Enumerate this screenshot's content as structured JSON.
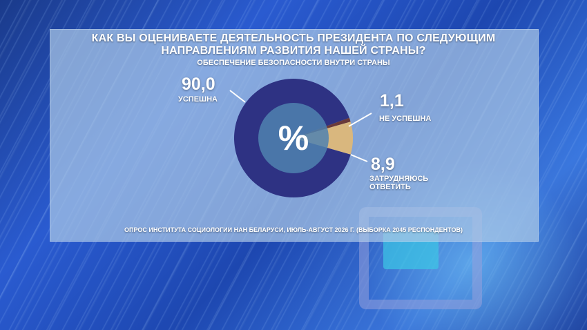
{
  "title_line1": "КАК ВЫ ОЦЕНИВАЕТЕ ДЕЯТЕЛЬНОСТЬ ПРЕЗИДЕНТА ПО СЛЕДУЮЩИМ",
  "title_line2": "НАПРАВЛЕНИЯМ РАЗВИТИЯ НАШЕЙ СТРАНЫ?",
  "subtitle": "ОБЕСПЕЧЕНИЕ БЕЗОПАСНОСТИ ВНУТРИ СТРАНЫ",
  "footer": "ОПРОС ИНСТИТУТА СОЦИОЛОГИИ НАН БЕЛАРУСИ, ИЮЛЬ-АВГУСТ 2026 Г. (ВЫБОРКА 2045 РЕСПОНДЕНТОВ)",
  "center_symbol": "%",
  "colors": {
    "success": "#2e3283",
    "not_success": "#6b3a3a",
    "undecided": "#d9b77e",
    "hole": "#4f82b0"
  },
  "chart_data": {
    "type": "pie",
    "donut": true,
    "slices": [
      {
        "label": "УСПЕШНА",
        "value": 90.0,
        "display": "90,0",
        "color": "#2e3283"
      },
      {
        "label": "НЕ УСПЕШНА",
        "value": 1.1,
        "display": "1,1",
        "color": "#6b3a3a"
      },
      {
        "label_lines": [
          "ЗАТРУДНЯЮСЬ",
          "ОТВЕТИТЬ"
        ],
        "value": 8.9,
        "display": "8,9",
        "color": "#d9b77e"
      }
    ]
  }
}
